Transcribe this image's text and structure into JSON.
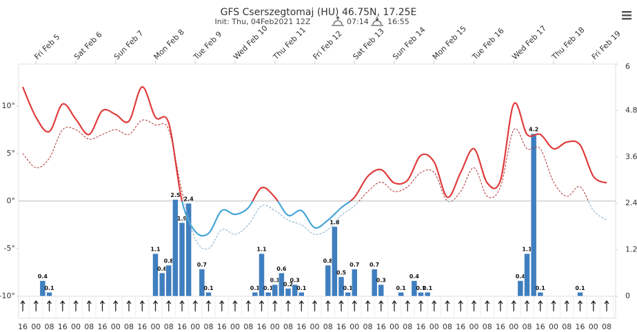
{
  "chart_data": {
    "type": "line",
    "title": "GFS Cserszegtomaj (HU) 46.75N, 17.25E",
    "subtitle": "Init: Thu, 04Feb2021 12Z",
    "sunrise": "07:14",
    "sunset": "16:55",
    "categories": [
      "16",
      "00",
      "08",
      "16",
      "00",
      "08",
      "16",
      "00",
      "08",
      "16",
      "00",
      "08",
      "16",
      "00",
      "08",
      "16",
      "00",
      "08",
      "16",
      "00",
      "08",
      "16",
      "00",
      "08",
      "16",
      "00",
      "08",
      "16",
      "00",
      "08",
      "16",
      "00",
      "08",
      "16",
      "00",
      "08",
      "16",
      "00",
      "08",
      "16",
      "00",
      "08",
      "16",
      "00",
      "08"
    ],
    "day_labels": [
      "Fri Feb 5",
      "Sat Feb 6",
      "Sun Feb 7",
      "Mon Feb 8",
      "Tue Feb 9",
      "Wed Feb 10",
      "Thu Feb 11",
      "Fri Feb 12",
      "Sat Feb 13",
      "Sun Feb 14",
      "Mon Feb 15",
      "Tue Feb 16",
      "Wed Feb 17",
      "Thu Feb 18",
      "Fri Feb 19"
    ],
    "series": [
      {
        "color": "#e03a3a",
        "color_below": "#45a5d8",
        "dashed": false,
        "values": [
          12.0,
          8.8,
          7.3,
          10.2,
          8.6,
          7.0,
          9.5,
          9.1,
          8.4,
          12.0,
          8.8,
          8.2,
          0.0,
          -3.2,
          -3.4,
          -1.0,
          -1.4,
          -0.7,
          1.4,
          0.4,
          -1.5,
          -1.0,
          -2.8,
          -2.0,
          -0.7,
          0.4,
          2.6,
          3.3,
          1.9,
          2.2,
          4.8,
          4.1,
          0.4,
          3.0,
          5.5,
          1.9,
          2.2,
          10.2,
          7.0,
          7.0,
          5.5,
          6.2,
          5.9,
          2.6,
          1.9
        ]
      },
      {
        "color": "#b03030",
        "color_below": "#7fa8c8",
        "dashed": true,
        "values": [
          5.0,
          3.5,
          4.5,
          7.5,
          7.5,
          6.5,
          7.0,
          7.5,
          7.0,
          8.5,
          8.0,
          7.5,
          1.0,
          -4.0,
          -5.0,
          -3.0,
          -3.5,
          -2.5,
          -0.5,
          -1.0,
          -2.0,
          -2.5,
          -3.5,
          -3.0,
          -1.5,
          -0.5,
          1.0,
          2.0,
          1.0,
          1.5,
          3.0,
          3.0,
          0.0,
          1.0,
          3.5,
          0.5,
          1.5,
          7.5,
          5.5,
          5.5,
          2.0,
          0.5,
          1.5,
          -1.0,
          -2.0
        ]
      }
    ],
    "precipitation": {
      "color": "#3f7fbf",
      "axis": "y2",
      "values": [
        null,
        null,
        null,
        0.4,
        0.1,
        null,
        null,
        null,
        null,
        null,
        null,
        null,
        null,
        null,
        null,
        null,
        null,
        null,
        null,
        null,
        1.1,
        0.6,
        0.8,
        2.5,
        1.9,
        2.4,
        null,
        0.7,
        0.1,
        null,
        null,
        null,
        null,
        null,
        null,
        0.1,
        1.1,
        0.1,
        0.3,
        0.6,
        0.2,
        0.3,
        0.1,
        null,
        null,
        null,
        0.8,
        1.8,
        0.5,
        0.1,
        0.7,
        null,
        null,
        0.7,
        0.3,
        null,
        null,
        0.1,
        null,
        0.4,
        0.1,
        0.1,
        null,
        null,
        null,
        null,
        null,
        null,
        null,
        null,
        null,
        null,
        null,
        null,
        null,
        0.4,
        1.1,
        4.2,
        0.1,
        null,
        null,
        null,
        null,
        null,
        0.1,
        null,
        null,
        null,
        null
      ]
    },
    "ylim": [
      -10,
      14.4
    ],
    "yticks": [
      {
        "value": 10,
        "label": "10°"
      },
      {
        "value": 5,
        "label": "5°"
      },
      {
        "value": 0,
        "label": "0°"
      },
      {
        "value": -5,
        "label": "-5°"
      },
      {
        "value": -10,
        "label": "-10°"
      }
    ],
    "y2lim": [
      0,
      6
    ],
    "y2ticks": [
      6,
      4.8,
      3.6,
      2.4,
      1.2,
      0
    ],
    "grid": true
  }
}
